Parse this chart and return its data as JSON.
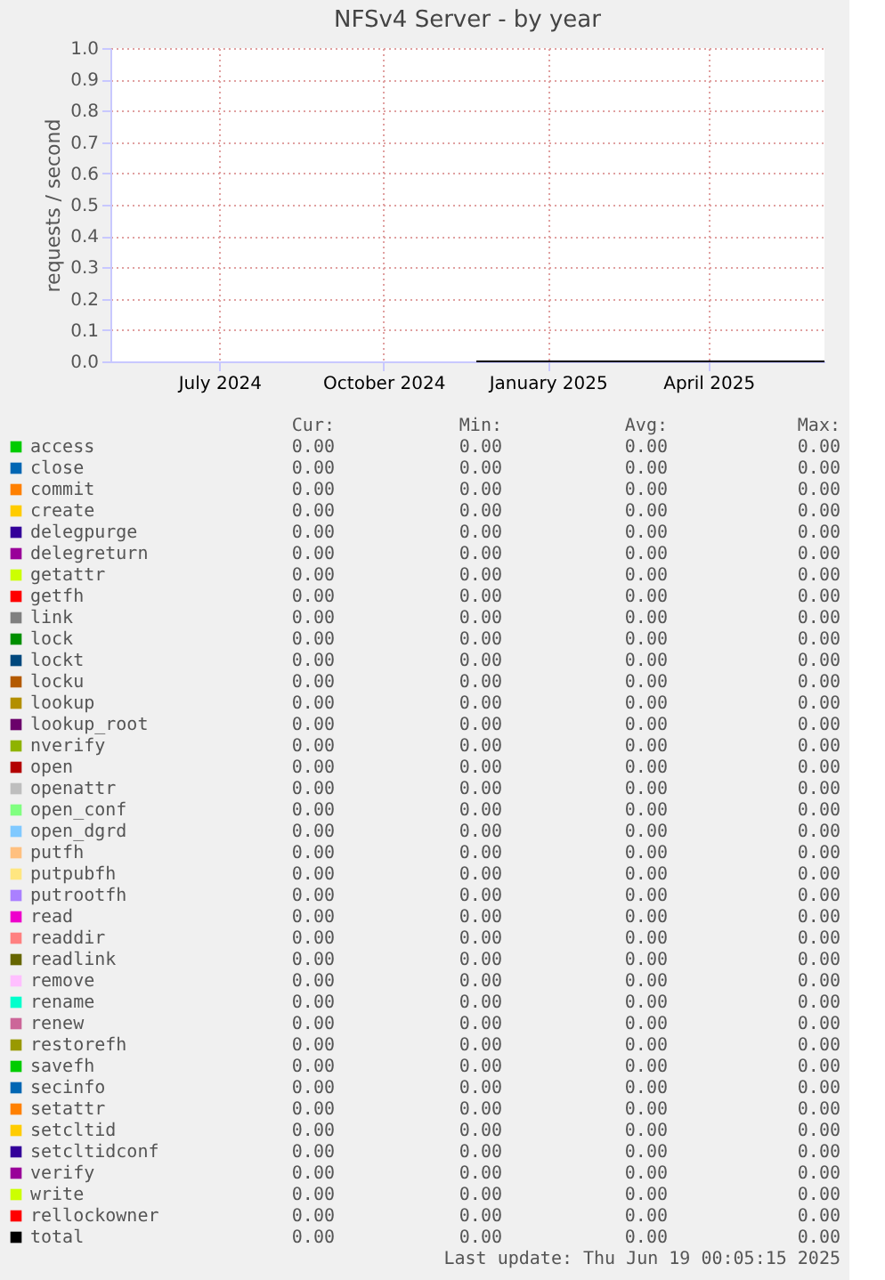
{
  "chart_data": {
    "type": "line",
    "title": "NFSv4 Server - by year",
    "ylabel": "requests / second",
    "x": [
      "2024-11-22",
      "2025-06-05"
    ],
    "xlim": [
      "2024-05-01",
      "2025-06-05"
    ],
    "xticks": [
      {
        "value": "2024-07-01",
        "label": "July 2024"
      },
      {
        "value": "2024-10-01",
        "label": "October 2024"
      },
      {
        "value": "2025-01-01",
        "label": "January 2025"
      },
      {
        "value": "2025-04-01",
        "label": "April 2025"
      }
    ],
    "ylim": [
      0,
      1
    ],
    "yticks": [
      {
        "value": 0,
        "label": "0.0"
      },
      0.1,
      0.2,
      0.3,
      0.4,
      0.5,
      0.6,
      0.7,
      0.8,
      0.9,
      {
        "value": 1,
        "label": "1.0"
      }
    ],
    "grid": true,
    "legend": "bottom",
    "series": [
      {
        "name": "access",
        "color": "#00cc00",
        "values": [
          null,
          null
        ]
      },
      {
        "name": "close",
        "color": "#0066b3",
        "values": [
          null,
          null
        ]
      },
      {
        "name": "commit",
        "color": "#ff8000",
        "values": [
          null,
          null
        ]
      },
      {
        "name": "create",
        "color": "#ffcc00",
        "values": [
          null,
          null
        ]
      },
      {
        "name": "delegpurge",
        "color": "#330099",
        "values": [
          null,
          null
        ]
      },
      {
        "name": "delegreturn",
        "color": "#990099",
        "values": [
          null,
          null
        ]
      },
      {
        "name": "getattr",
        "color": "#ccff00",
        "values": [
          null,
          null
        ]
      },
      {
        "name": "getfh",
        "color": "#ff0000",
        "values": [
          null,
          null
        ]
      },
      {
        "name": "link",
        "color": "#808080",
        "values": [
          null,
          null
        ]
      },
      {
        "name": "lock",
        "color": "#008f00",
        "values": [
          null,
          null
        ]
      },
      {
        "name": "lockt",
        "color": "#00487d",
        "values": [
          null,
          null
        ]
      },
      {
        "name": "locku",
        "color": "#b35a00",
        "values": [
          null,
          null
        ]
      },
      {
        "name": "lookup",
        "color": "#b38f00",
        "values": [
          null,
          null
        ]
      },
      {
        "name": "lookup_root",
        "color": "#6b006b",
        "values": [
          null,
          null
        ]
      },
      {
        "name": "nverify",
        "color": "#8fb300",
        "values": [
          null,
          null
        ]
      },
      {
        "name": "open",
        "color": "#b30000",
        "values": [
          null,
          null
        ]
      },
      {
        "name": "openattr",
        "color": "#bebebe",
        "values": [
          null,
          null
        ]
      },
      {
        "name": "open_conf",
        "color": "#80ff80",
        "values": [
          null,
          null
        ]
      },
      {
        "name": "open_dgrd",
        "color": "#80c9ff",
        "values": [
          null,
          null
        ]
      },
      {
        "name": "putfh",
        "color": "#ffc080",
        "values": [
          null,
          null
        ]
      },
      {
        "name": "putpubfh",
        "color": "#ffe680",
        "values": [
          null,
          null
        ]
      },
      {
        "name": "putrootfh",
        "color": "#aa80ff",
        "values": [
          null,
          null
        ]
      },
      {
        "name": "read",
        "color": "#ee00cc",
        "values": [
          null,
          null
        ]
      },
      {
        "name": "readdir",
        "color": "#ff8080",
        "values": [
          null,
          null
        ]
      },
      {
        "name": "readlink",
        "color": "#666600",
        "values": [
          null,
          null
        ]
      },
      {
        "name": "remove",
        "color": "#ffbfff",
        "values": [
          null,
          null
        ]
      },
      {
        "name": "rename",
        "color": "#00ffcc",
        "values": [
          null,
          null
        ]
      },
      {
        "name": "renew",
        "color": "#cc6699",
        "values": [
          null,
          null
        ]
      },
      {
        "name": "restorefh",
        "color": "#999900",
        "values": [
          null,
          null
        ]
      },
      {
        "name": "savefh",
        "color": "#00cc00",
        "values": [
          null,
          null
        ]
      },
      {
        "name": "secinfo",
        "color": "#0066b3",
        "values": [
          null,
          null
        ]
      },
      {
        "name": "setattr",
        "color": "#ff8000",
        "values": [
          null,
          null
        ]
      },
      {
        "name": "setcltid",
        "color": "#ffcc00",
        "values": [
          null,
          null
        ]
      },
      {
        "name": "setcltidconf",
        "color": "#330099",
        "values": [
          null,
          null
        ]
      },
      {
        "name": "verify",
        "color": "#990099",
        "values": [
          null,
          null
        ]
      },
      {
        "name": "write",
        "color": "#ccff00",
        "values": [
          null,
          null
        ]
      },
      {
        "name": "rellockowner",
        "color": "#ff0000",
        "values": [
          null,
          null
        ]
      },
      {
        "name": "total",
        "color": "#000000",
        "values": [
          0,
          0
        ]
      }
    ],
    "annotations": [
      "Cur:",
      "Min:",
      "Avg:",
      "Max:",
      "0.00",
      "0.00",
      "0.00",
      "0.00",
      "0.00",
      "0.00",
      "0.00",
      "0.00",
      "0.00",
      "0.00",
      "0.00",
      "0.00",
      "0.00",
      "0.00",
      "0.00",
      "0.00",
      "0.00",
      "0.00",
      "0.00",
      "0.00",
      "0.00",
      "0.00",
      "0.00",
      "0.00",
      "0.00",
      "0.00",
      "0.00",
      "0.00",
      "0.00",
      "0.00",
      "0.00",
      "0.00",
      "0.00",
      "0.00",
      "0.00",
      "0.00",
      "0.00",
      "0.00",
      "0.00",
      "0.00",
      "0.00",
      "0.00",
      "0.00",
      "0.00",
      "0.00",
      "0.00",
      "0.00",
      "0.00",
      "0.00",
      "0.00",
      "0.00",
      "0.00",
      "0.00",
      "0.00",
      "0.00",
      "0.00",
      "0.00",
      "0.00",
      "0.00",
      "0.00",
      "0.00",
      "0.00",
      "0.00",
      "0.00",
      "0.00",
      "0.00",
      "0.00",
      "0.00",
      "0.00",
      "0.00",
      "0.00",
      "0.00",
      "0.00",
      "0.00",
      "0.00",
      "0.00",
      "0.00",
      "0.00",
      "0.00",
      "0.00",
      "0.00",
      "0.00",
      "0.00",
      "0.00",
      "0.00",
      "0.00",
      "0.00",
      "0.00",
      "0.00",
      "0.00",
      "0.00",
      "0.00",
      "0.00",
      "0.00",
      "0.00",
      "0.00",
      "0.00",
      "0.00",
      "0.00",
      "0.00",
      "0.00",
      "0.00",
      "0.00",
      "0.00",
      "0.00",
      "0.00",
      "0.00",
      "0.00",
      "0.00",
      "0.00",
      "0.00",
      "0.00",
      "0.00",
      "0.00",
      "0.00",
      "0.00",
      "0.00",
      "0.00",
      "0.00",
      "0.00",
      "0.00",
      "0.00",
      "0.00",
      "0.00",
      "0.00",
      "0.00",
      "0.00",
      "0.00",
      "0.00",
      "0.00",
      "0.00",
      "0.00",
      "0.00",
      "0.00",
      "0.00",
      "0.00",
      "0.00",
      "0.00",
      "0.00",
      "0.00",
      "0.00",
      "0.00",
      "0.00",
      "0.00",
      "0.00",
      "0.00",
      "0.00",
      "0.00",
      "0.00",
      "0.00",
      "0.00",
      "0.00",
      "Last update: Thu Jun 19 00:05:15 2025"
    ]
  }
}
